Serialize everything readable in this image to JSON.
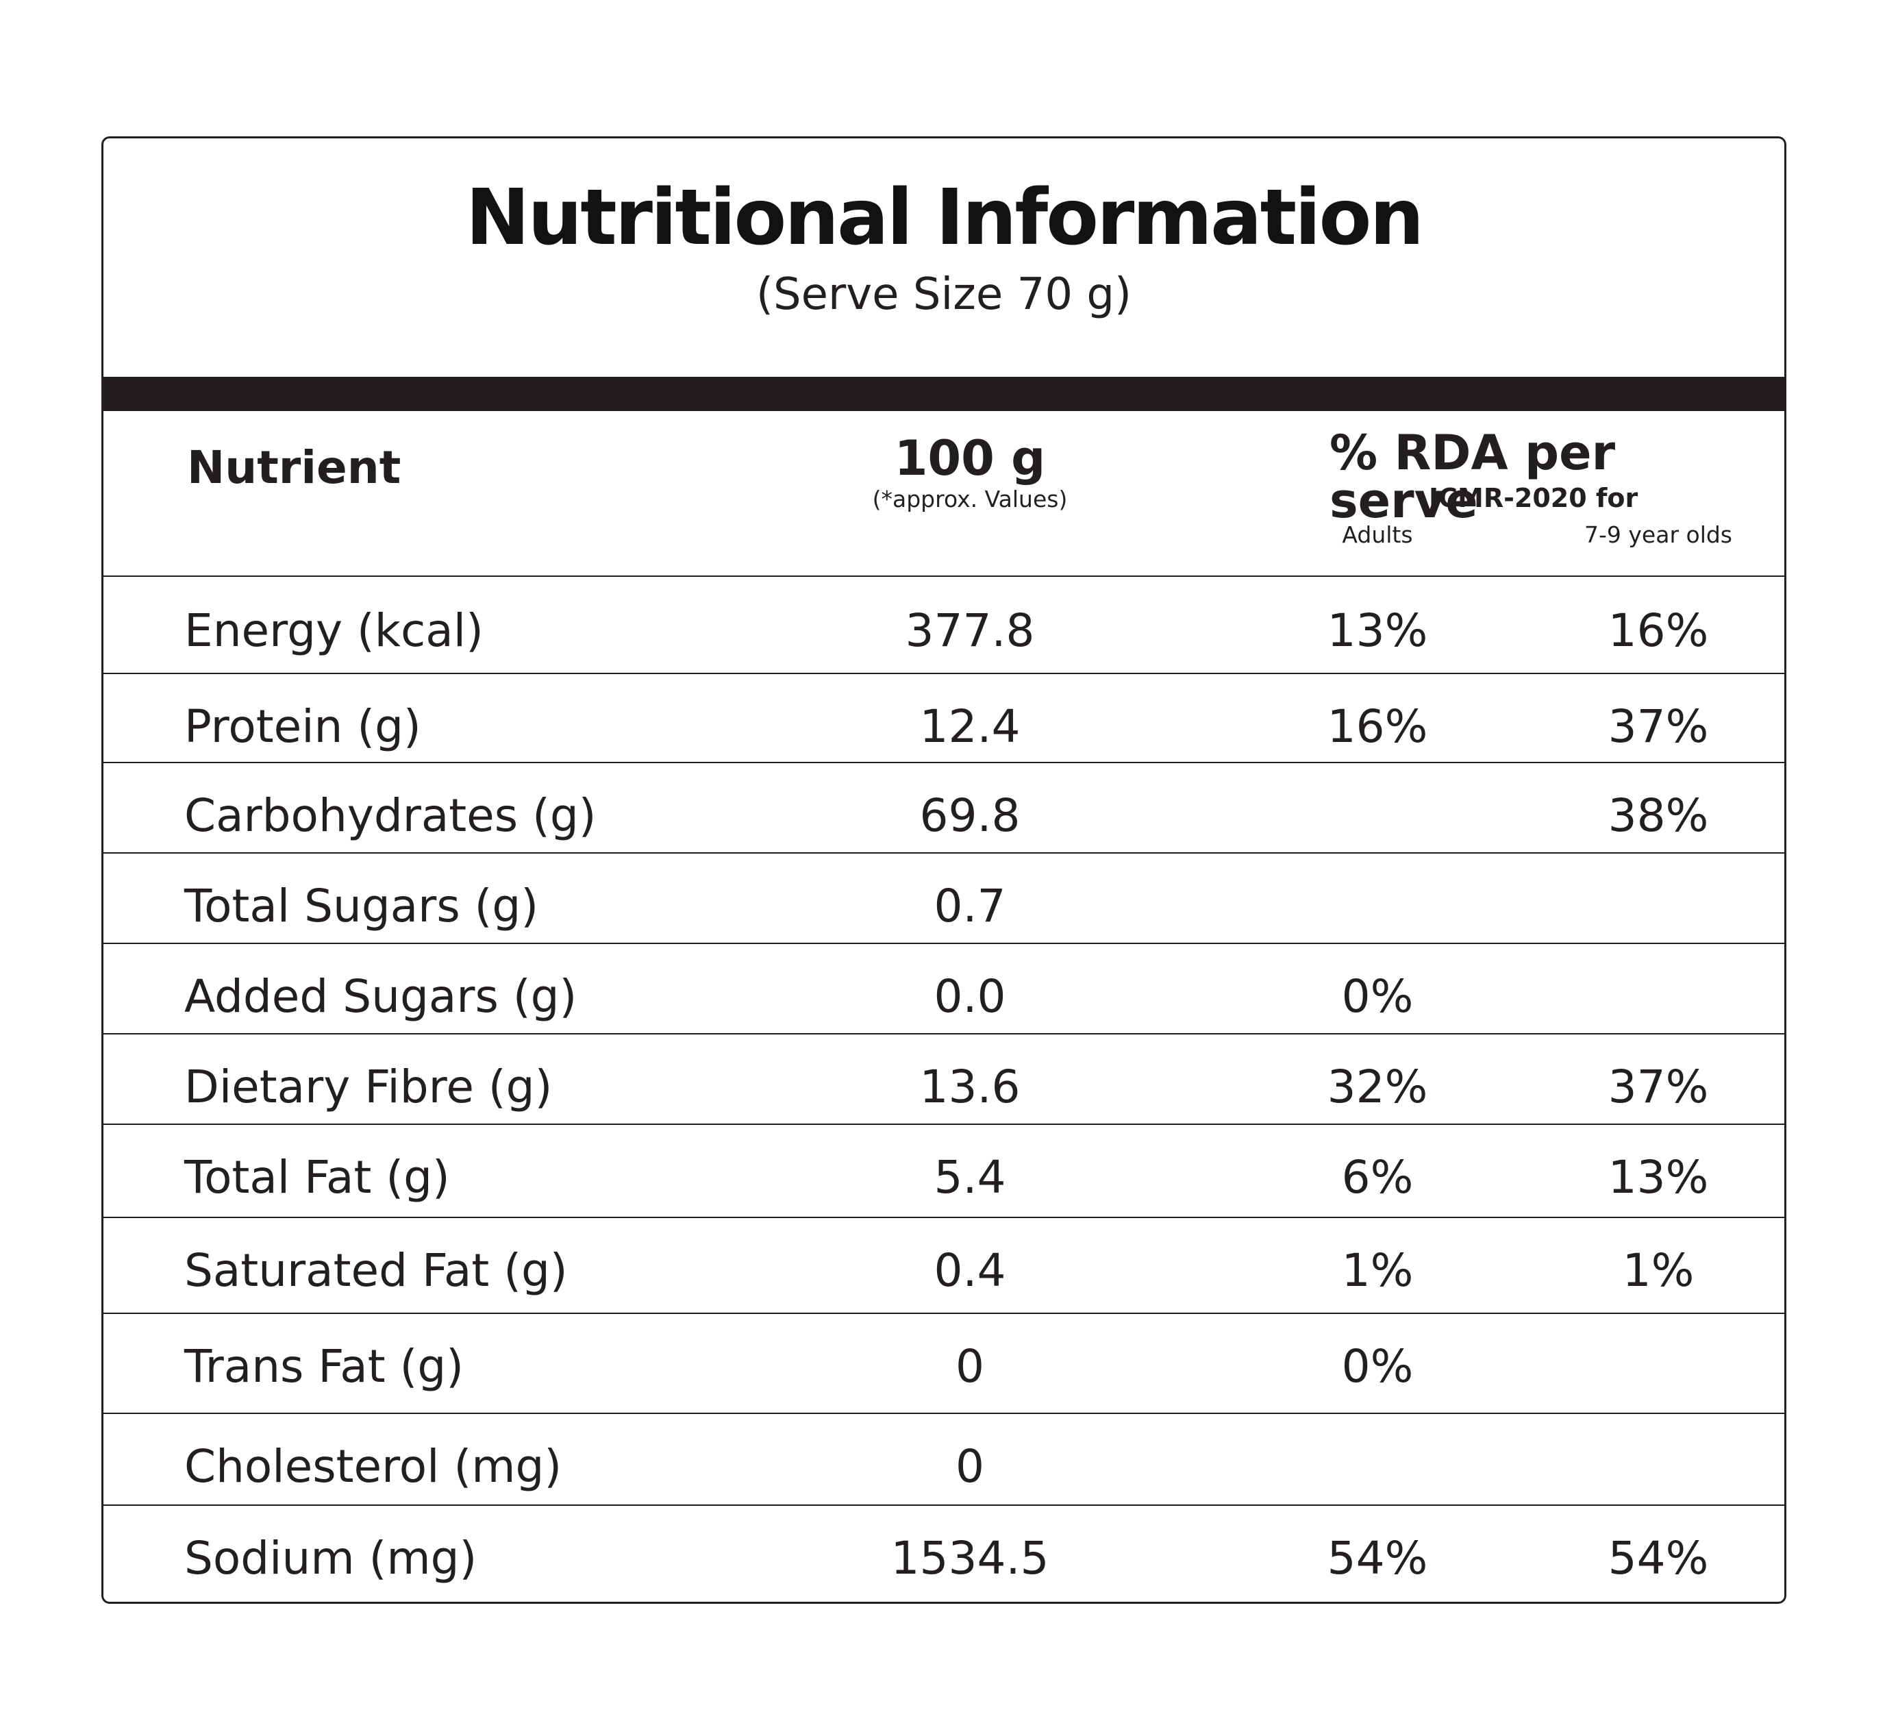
{
  "title": "Nutritional Information",
  "subtitle": "(Serve Size 70 g)",
  "header": {
    "nutrient": "Nutrient",
    "per_100g": "100 g",
    "per_100g_note": "(*approx. Values)",
    "rda": "% RDA per serve",
    "icmr": "ICMR-2020 for",
    "adults": "Adults",
    "kids": "7-9 year olds"
  },
  "rows": [
    {
      "name": "Energy (kcal)",
      "per_100g": "377.8",
      "adults": "13%",
      "kids": "16%"
    },
    {
      "name": "Protein (g)",
      "per_100g": "12.4",
      "adults": "16%",
      "kids": "37%"
    },
    {
      "name": "Carbohydrates (g)",
      "per_100g": "69.8",
      "adults": "",
      "kids": "38%"
    },
    {
      "name": "Total Sugars (g)",
      "per_100g": "0.7",
      "adults": "",
      "kids": ""
    },
    {
      "name": "Added Sugars (g)",
      "per_100g": "0.0",
      "adults": "0%",
      "kids": ""
    },
    {
      "name": "Dietary Fibre (g)",
      "per_100g": "13.6",
      "adults": "32%",
      "kids": "37%"
    },
    {
      "name": "Total Fat (g)",
      "per_100g": "5.4",
      "adults": "6%",
      "kids": "13%"
    },
    {
      "name": "Saturated Fat (g)",
      "per_100g": "0.4",
      "adults": "1%",
      "kids": "1%"
    },
    {
      "name": "Trans Fat (g)",
      "per_100g": "0",
      "adults": "0%",
      "kids": ""
    },
    {
      "name": "Cholesterol (mg)",
      "per_100g": "0",
      "adults": "",
      "kids": ""
    },
    {
      "name": "Sodium (mg)",
      "per_100g": "1534.5",
      "adults": "54%",
      "kids": "54%"
    }
  ]
}
